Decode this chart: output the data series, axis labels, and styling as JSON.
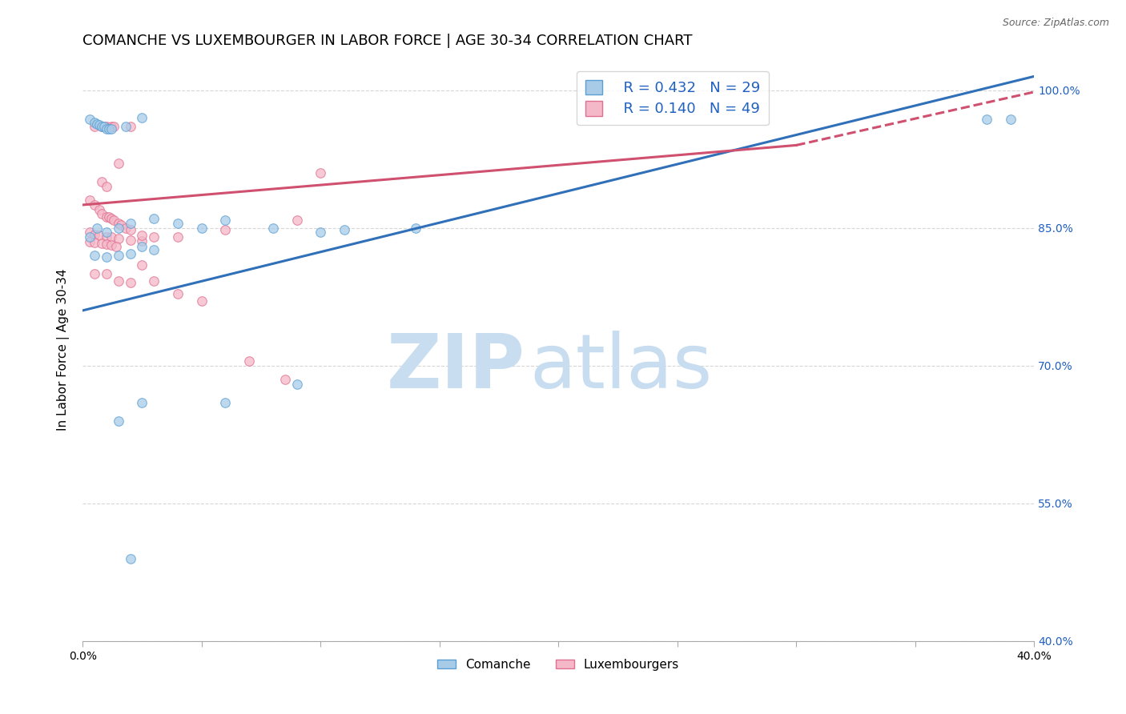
{
  "title": "COMANCHE VS LUXEMBOURGER IN LABOR FORCE | AGE 30-34 CORRELATION CHART",
  "source": "Source: ZipAtlas.com",
  "ylabel": "In Labor Force | Age 30-34",
  "xlim": [
    0.0,
    0.4
  ],
  "ylim": [
    0.4,
    1.035
  ],
  "yticks": [
    0.4,
    0.55,
    0.7,
    0.85,
    1.0
  ],
  "ytick_labels": [
    "40.0%",
    "55.0%",
    "70.0%",
    "85.0%",
    "100.0%"
  ],
  "xtick_positions": [
    0.0,
    0.05,
    0.1,
    0.15,
    0.2,
    0.25,
    0.3,
    0.35,
    0.4
  ],
  "legend_blue_R": "R = 0.432",
  "legend_blue_N": "N = 29",
  "legend_pink_R": "R = 0.140",
  "legend_pink_N": "N = 49",
  "blue_color": "#a8cce8",
  "pink_color": "#f4b8c8",
  "blue_edge_color": "#5a9fd4",
  "pink_edge_color": "#e07090",
  "blue_line_color": "#3070b8",
  "pink_line_color": "#d05070",
  "blue_scatter": [
    [
      0.005,
      0.96
    ],
    [
      0.008,
      0.96
    ],
    [
      0.009,
      0.96
    ],
    [
      0.01,
      0.96
    ],
    [
      0.012,
      0.96
    ],
    [
      0.013,
      0.96
    ],
    [
      0.02,
      0.96
    ],
    [
      0.015,
      0.92
    ],
    [
      0.008,
      0.9
    ],
    [
      0.01,
      0.895
    ],
    [
      0.003,
      0.88
    ],
    [
      0.005,
      0.875
    ],
    [
      0.007,
      0.87
    ],
    [
      0.008,
      0.865
    ],
    [
      0.01,
      0.862
    ],
    [
      0.011,
      0.862
    ],
    [
      0.012,
      0.86
    ],
    [
      0.013,
      0.858
    ],
    [
      0.015,
      0.855
    ],
    [
      0.016,
      0.853
    ],
    [
      0.018,
      0.85
    ],
    [
      0.02,
      0.848
    ],
    [
      0.003,
      0.845
    ],
    [
      0.005,
      0.843
    ],
    [
      0.007,
      0.842
    ],
    [
      0.01,
      0.84
    ],
    [
      0.012,
      0.84
    ],
    [
      0.015,
      0.838
    ],
    [
      0.02,
      0.837
    ],
    [
      0.025,
      0.836
    ],
    [
      0.003,
      0.835
    ],
    [
      0.005,
      0.834
    ],
    [
      0.008,
      0.833
    ],
    [
      0.01,
      0.832
    ],
    [
      0.012,
      0.831
    ],
    [
      0.014,
      0.83
    ],
    [
      0.025,
      0.842
    ],
    [
      0.03,
      0.84
    ],
    [
      0.04,
      0.84
    ],
    [
      0.06,
      0.848
    ],
    [
      0.09,
      0.858
    ],
    [
      0.1,
      0.91
    ],
    [
      0.005,
      0.8
    ],
    [
      0.01,
      0.8
    ],
    [
      0.015,
      0.792
    ],
    [
      0.02,
      0.79
    ],
    [
      0.025,
      0.81
    ],
    [
      0.03,
      0.792
    ],
    [
      0.04,
      0.778
    ],
    [
      0.05,
      0.77
    ],
    [
      0.07,
      0.705
    ],
    [
      0.085,
      0.685
    ]
  ],
  "blue_scatter2": [
    [
      0.003,
      0.968
    ],
    [
      0.005,
      0.965
    ],
    [
      0.006,
      0.963
    ],
    [
      0.007,
      0.962
    ],
    [
      0.008,
      0.96
    ],
    [
      0.009,
      0.96
    ],
    [
      0.01,
      0.958
    ],
    [
      0.011,
      0.958
    ],
    [
      0.012,
      0.958
    ],
    [
      0.018,
      0.96
    ],
    [
      0.025,
      0.97
    ],
    [
      0.003,
      0.84
    ],
    [
      0.006,
      0.85
    ],
    [
      0.01,
      0.845
    ],
    [
      0.015,
      0.85
    ],
    [
      0.02,
      0.855
    ],
    [
      0.03,
      0.86
    ],
    [
      0.04,
      0.855
    ],
    [
      0.06,
      0.858
    ],
    [
      0.08,
      0.85
    ],
    [
      0.1,
      0.845
    ],
    [
      0.11,
      0.848
    ],
    [
      0.14,
      0.85
    ],
    [
      0.005,
      0.82
    ],
    [
      0.01,
      0.818
    ],
    [
      0.015,
      0.82
    ],
    [
      0.02,
      0.822
    ],
    [
      0.025,
      0.83
    ],
    [
      0.03,
      0.826
    ],
    [
      0.05,
      0.85
    ],
    [
      0.38,
      0.968
    ],
    [
      0.39,
      0.968
    ],
    [
      0.06,
      0.66
    ],
    [
      0.09,
      0.68
    ],
    [
      0.015,
      0.64
    ],
    [
      0.025,
      0.66
    ],
    [
      0.02,
      0.49
    ]
  ],
  "blue_line": {
    "x0": 0.0,
    "x1": 0.4,
    "y0": 0.76,
    "y1": 1.015
  },
  "pink_line_solid": {
    "x0": 0.0,
    "x1": 0.3,
    "y0": 0.875,
    "y1": 0.94
  },
  "pink_line_dash": {
    "x0": 0.3,
    "x1": 0.4,
    "y0": 0.94,
    "y1": 0.998
  },
  "background_color": "#ffffff",
  "grid_color": "#cccccc",
  "title_fontsize": 13,
  "label_fontsize": 11,
  "tick_fontsize": 10,
  "watermark_zip": "ZIP",
  "watermark_atlas": "atlas",
  "watermark_color_zip": "#c8ddf0",
  "watermark_color_atlas": "#c8ddf0",
  "marker_size": 70
}
